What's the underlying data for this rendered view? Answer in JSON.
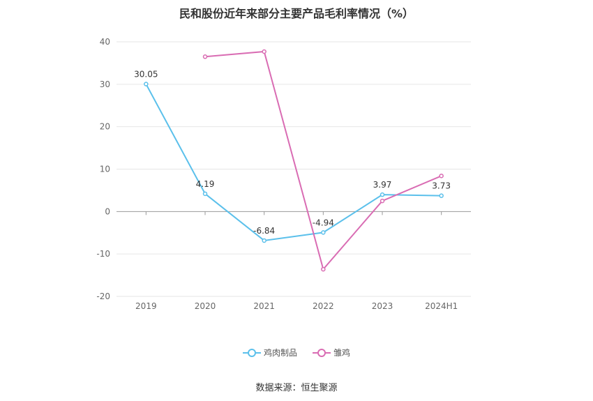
{
  "title": "民和股份近年来部分主要产品毛利率情况（%）",
  "source": "数据来源：恒生聚源",
  "chart_data": {
    "type": "line",
    "title": "民和股份近年来部分主要产品毛利率情况（%）",
    "categories": [
      "2019",
      "2020",
      "2021",
      "2022",
      "2023",
      "2024H1"
    ],
    "ylim": [
      -20,
      40
    ],
    "yticks": [
      -20,
      -10,
      0,
      10,
      20,
      30,
      40
    ],
    "grid": true,
    "legend_position": "bottom",
    "series": [
      {
        "name": "鸡肉制品",
        "color": "#5bc0eb",
        "values": [
          30.05,
          4.19,
          -6.84,
          -4.94,
          3.97,
          3.73
        ],
        "data_labels": [
          "30.05",
          "4.19",
          "-6.84",
          "-4.94",
          "3.97",
          "3.73"
        ]
      },
      {
        "name": "雏鸡",
        "color": "#d96cb3",
        "values": [
          null,
          36.5,
          37.7,
          -13.6,
          2.5,
          8.4
        ],
        "data_labels": [
          null,
          null,
          null,
          null,
          null,
          null
        ]
      }
    ]
  }
}
